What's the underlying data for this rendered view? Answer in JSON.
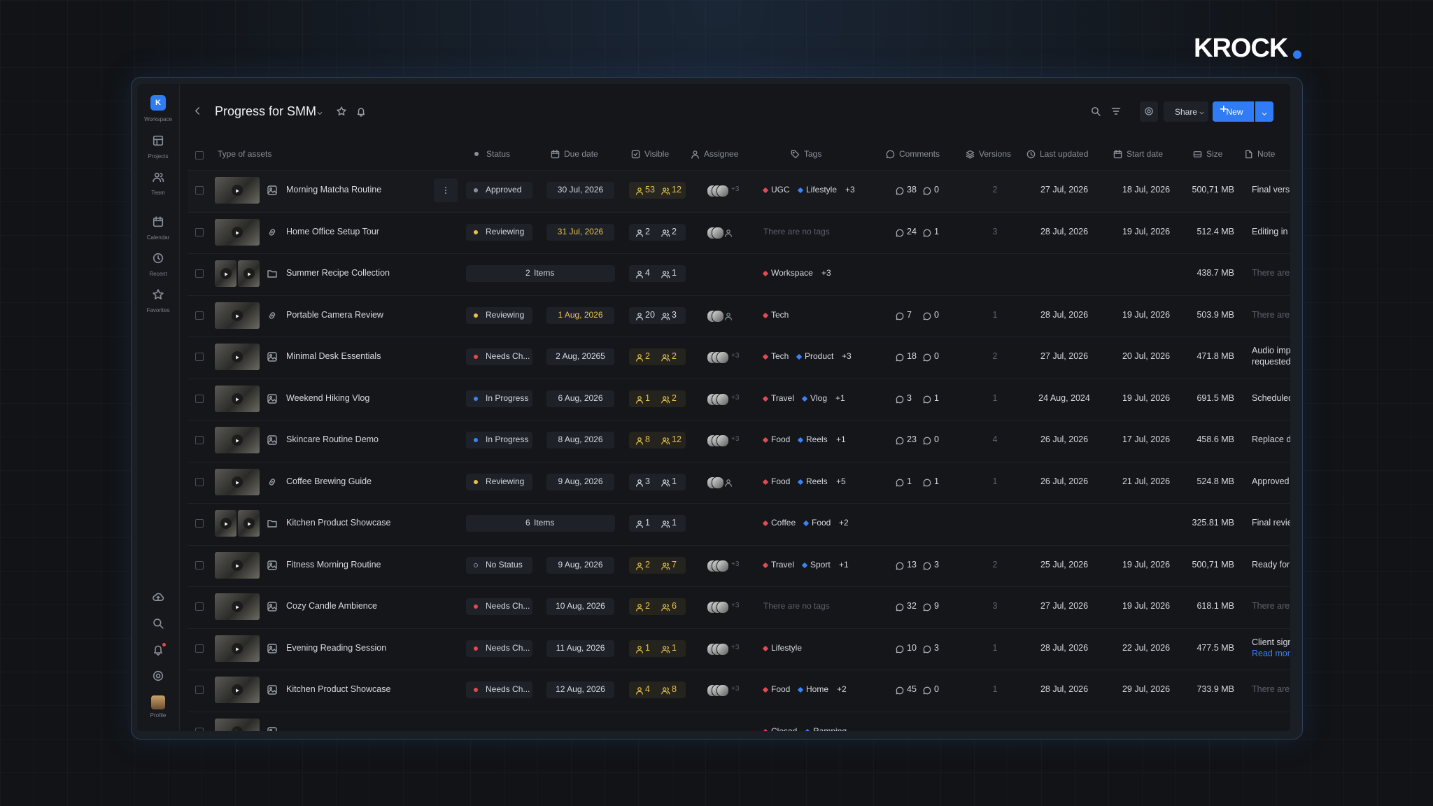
{
  "brand": "KROCK",
  "sidebar": {
    "workspace_initial": "K",
    "items": [
      "Workspace",
      "Projects",
      "Team",
      "Calendar",
      "Recent",
      "Favorites"
    ],
    "profile": "Profile"
  },
  "header": {
    "title": "Progress for SMM",
    "share": "Share",
    "new": "New"
  },
  "columns": [
    "Type of assets",
    "Status",
    "Due date",
    "Visible",
    "Assignee",
    "Tags",
    "Comments",
    "Versions",
    "Last updated",
    "Start date",
    "Size",
    "Note"
  ],
  "rows": [
    {
      "asset_type": "image",
      "name": "Morning Matcha Routine",
      "status": "Approved",
      "status_color": "#8a8f98",
      "due": "30 Jul, 2026",
      "visible": [
        53,
        12
      ],
      "visible_highlight": true,
      "assignee_more": "+3",
      "tags": [
        "UGC",
        "Lifestyle"
      ],
      "tags_more": "+3",
      "comments": [
        38,
        0
      ],
      "versions": 2,
      "last_updated": "27 Jul, 2026",
      "start_date": "18 Jul, 2026",
      "size": "500,71 MB",
      "note": "Final versio"
    },
    {
      "asset_type": "link",
      "name": "Home Office Setup Tour",
      "status": "Reviewing",
      "status_color": "#e6c24a",
      "due": "31 Jul, 2026",
      "due_highlight": true,
      "visible": [
        2,
        2
      ],
      "tags_empty": "There are no tags",
      "comments": [
        24,
        1
      ],
      "versions": 3,
      "last_updated": "28 Jul, 2026",
      "start_date": "19 Jul, 2026",
      "size": "512.4 MB",
      "note": "Editing in p"
    },
    {
      "asset_type": "folder",
      "name": "Summer Recipe Collection",
      "items": 2,
      "items_label": "Items",
      "visible": [
        4,
        1
      ],
      "tags": [
        "Workspace"
      ],
      "tags_more": "+3",
      "size": "438.7 MB",
      "note": "There are n",
      "note_dim": true
    },
    {
      "asset_type": "link",
      "name": "Portable Camera Review",
      "status": "Reviewing",
      "status_color": "#e6c24a",
      "due": "1 Aug, 2026",
      "due_highlight": true,
      "visible": [
        20,
        3
      ],
      "tags": [
        "Tech"
      ],
      "comments": [
        7,
        0
      ],
      "versions": 1,
      "last_updated": "28 Jul, 2026",
      "start_date": "19 Jul, 2026",
      "size": "503.9 MB",
      "note": "There are n",
      "note_dim": true
    },
    {
      "asset_type": "image",
      "name": "Minimal Desk Essentials",
      "status": "Needs Ch...",
      "status_color": "#e5484d",
      "due": "2 Aug, 20265",
      "visible": [
        2,
        2
      ],
      "visible_highlight": true,
      "assignee_more": "+3",
      "tags": [
        "Tech",
        "Product"
      ],
      "tags_more": "+3",
      "comments": [
        18,
        0
      ],
      "versions": 2,
      "last_updated": "27 Jul, 2026",
      "start_date": "20 Jul, 2026",
      "size": "471.8 MB",
      "note": "Audio impro",
      "note2": "requested."
    },
    {
      "asset_type": "image",
      "name": "Weekend Hiking Vlog",
      "status": "In Progress",
      "status_color": "#3b82f6",
      "due": "6 Aug, 2026",
      "visible": [
        1,
        2
      ],
      "visible_highlight": true,
      "assignee_more": "+3",
      "tags": [
        "Travel",
        "Vlog"
      ],
      "tags_more": "+1",
      "comments": [
        3,
        1
      ],
      "versions": 1,
      "last_updated": "24 Aug, 2024",
      "start_date": "19 Jul, 2026",
      "size": "691.5 MB",
      "note": "Scheduled"
    },
    {
      "asset_type": "image",
      "name": "Skincare Routine Demo",
      "status": "In Progress",
      "status_color": "#3b82f6",
      "due": "8 Aug, 2026",
      "visible": [
        8,
        12
      ],
      "visible_highlight": true,
      "assignee_more": "+3",
      "tags": [
        "Food",
        "Reels"
      ],
      "tags_more": "+1",
      "comments": [
        23,
        0
      ],
      "versions": 4,
      "last_updated": "26 Jul, 2026",
      "start_date": "17 Jul, 2026",
      "size": "458.6 MB",
      "note": "Replace dr"
    },
    {
      "asset_type": "link",
      "name": "Coffee Brewing Guide",
      "status": "Reviewing",
      "status_color": "#e6c24a",
      "due": "9 Aug, 2026",
      "visible": [
        3,
        1
      ],
      "tags": [
        "Food",
        "Reels"
      ],
      "tags_more": "+5",
      "comments": [
        1,
        1
      ],
      "versions": 1,
      "last_updated": "26 Jul, 2026",
      "start_date": "21 Jul, 2026",
      "size": "524.8 MB",
      "note": "Approved b"
    },
    {
      "asset_type": "folder",
      "name": "Kitchen Product Showcase",
      "items": 6,
      "items_label": "Items",
      "visible": [
        1,
        1
      ],
      "tags": [
        "Coffee",
        "Food"
      ],
      "tags_more": "+2",
      "size": "325.81 MB",
      "note": "Final review"
    },
    {
      "asset_type": "image",
      "name": "Fitness Morning Routine",
      "status": "No Status",
      "status_color": "none",
      "due": "9 Aug, 2026",
      "visible": [
        2,
        7
      ],
      "visible_highlight": true,
      "assignee_more": "+3",
      "tags": [
        "Travel",
        "Sport"
      ],
      "tags_more": "+1",
      "comments": [
        13,
        3
      ],
      "versions": 2,
      "last_updated": "25 Jul, 2026",
      "start_date": "19 Jul, 2026",
      "size": "500,71 MB",
      "note": "Ready for s"
    },
    {
      "asset_type": "image",
      "name": "Cozy Candle Ambience",
      "status": "Needs Ch...",
      "status_color": "#e5484d",
      "due": "10 Aug, 2026",
      "visible": [
        2,
        6
      ],
      "visible_highlight": true,
      "assignee_more": "+3",
      "tags_empty": "There are no tags",
      "comments": [
        32,
        9
      ],
      "versions": 3,
      "last_updated": "27 Jul, 2026",
      "start_date": "19 Jul, 2026",
      "size": "618.1 MB",
      "note": "There are n",
      "note_dim": true
    },
    {
      "asset_type": "image",
      "name": "Evening Reading Session",
      "status": "Needs Ch...",
      "status_color": "#e5484d",
      "due": "11 Aug, 2026",
      "visible": [
        1,
        1
      ],
      "visible_highlight": true,
      "assignee_more": "+3",
      "tags": [
        "Lifestyle"
      ],
      "comments": [
        10,
        3
      ],
      "versions": 1,
      "last_updated": "28 Jul, 2026",
      "start_date": "22 Jul, 2026",
      "size": "477.5 MB",
      "note": "Client sign",
      "note_link": "Read more"
    },
    {
      "asset_type": "image",
      "name": "Kitchen Product Showcase",
      "status": "Needs Ch...",
      "status_color": "#e5484d",
      "due": "12 Aug, 2026",
      "visible": [
        4,
        8
      ],
      "visible_highlight": true,
      "assignee_more": "+3",
      "tags": [
        "Food",
        "Home"
      ],
      "tags_more": "+2",
      "comments": [
        45,
        0
      ],
      "versions": 1,
      "last_updated": "28 Jul, 2026",
      "start_date": "29 Jul, 2026",
      "size": "733.9 MB",
      "note": "There are n",
      "note_dim": true
    },
    {
      "asset_type": "image",
      "tags": [
        "Closed",
        "Ramping"
      ]
    }
  ]
}
